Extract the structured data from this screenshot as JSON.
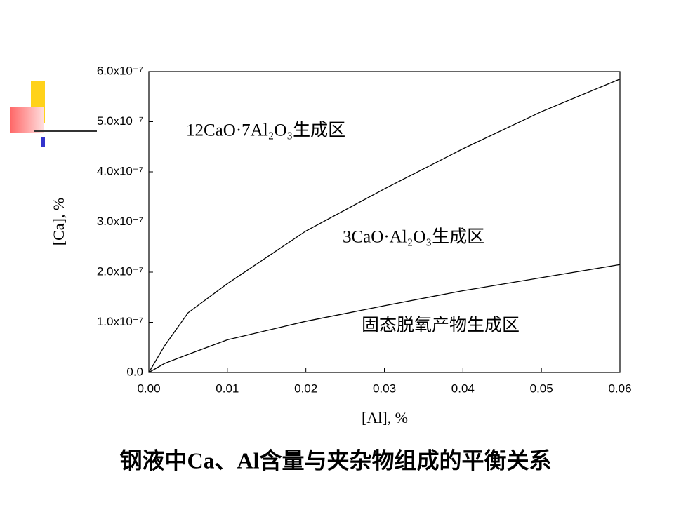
{
  "chart_data": {
    "type": "line",
    "x_label": "[Al], %",
    "y_label": "[Ca], %",
    "caption": "钢液中Ca、Al含量与夹杂物组成的平衡关系",
    "annotations": [
      "12CaO·7Al₂O₃生成区",
      "3CaO·Al₂O₃生成区",
      "固态脱氧产物生成区"
    ],
    "x": [
      0,
      0.002,
      0.005,
      0.01,
      0.02,
      0.03,
      0.04,
      0.05,
      0.06
    ],
    "series": [
      {
        "color": "#000000",
        "values": [
          0,
          5.3e-08,
          1.19e-07,
          1.77e-07,
          2.82e-07,
          3.66e-07,
          4.46e-07,
          5.2e-07,
          5.85e-07
        ]
      },
      {
        "color": "#000000",
        "values": [
          0,
          1.8e-08,
          3.6e-08,
          6.5e-08,
          1.02e-07,
          1.33e-07,
          1.63e-07,
          1.89e-07,
          2.15e-07
        ]
      }
    ],
    "xlim": [
      0,
      0.06
    ],
    "xticks": [
      {
        "value": 0,
        "label": "0.00"
      },
      0.01,
      0.02,
      0.03,
      0.04,
      0.05,
      0.06
    ],
    "ylim": [
      0,
      6e-07
    ],
    "yticks": [
      {
        "value": 0,
        "label": "0.0"
      },
      {
        "value": 1e-07,
        "label": "1.0x10⁻⁷"
      },
      {
        "value": 2e-07,
        "label": "2.0x10⁻⁷"
      },
      {
        "value": 3e-07,
        "label": "3.0x10⁻⁷"
      },
      {
        "value": 4e-07,
        "label": "4.0x10⁻⁷"
      },
      {
        "value": 5e-07,
        "label": "5.0x10⁻⁷"
      },
      {
        "value": 6e-07,
        "label": "6.0x10⁻⁷"
      }
    ]
  }
}
